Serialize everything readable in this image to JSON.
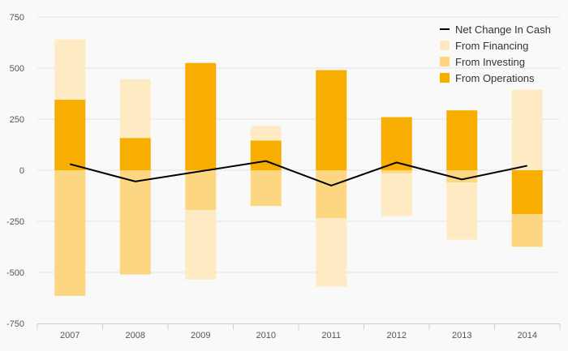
{
  "chart_data": {
    "type": "bar",
    "title": "",
    "xlabel": "",
    "ylabel": "",
    "stacked": true,
    "categories": [
      "2007",
      "2008",
      "2009",
      "2010",
      "2011",
      "2012",
      "2013",
      "2014"
    ],
    "ylim": [
      -750,
      750
    ],
    "yticks": [
      750,
      500,
      250,
      0,
      -250,
      -500,
      -750
    ],
    "grid": true,
    "legend_position": "top-right",
    "series": [
      {
        "name": "From Operations",
        "type": "bar",
        "color": "#f8ae00",
        "values": [
          345,
          158,
          525,
          145,
          490,
          260,
          293,
          -215
        ]
      },
      {
        "name": "From Investing",
        "type": "bar",
        "color": "#fcd680",
        "values": [
          -615,
          -510,
          -195,
          -175,
          -235,
          -15,
          -60,
          -160
        ]
      },
      {
        "name": "From Financing",
        "type": "bar",
        "color": "#feebc4",
        "values": [
          295,
          287,
          -340,
          72,
          -335,
          -210,
          -280,
          395
        ]
      },
      {
        "name": "Net Change In Cash",
        "type": "line",
        "color": "#000000",
        "values": [
          30,
          -55,
          -5,
          45,
          -75,
          38,
          -45,
          22
        ]
      }
    ],
    "legend": [
      {
        "label": "Net Change In Cash",
        "kind": "line",
        "color": "#000000"
      },
      {
        "label": "From Financing",
        "kind": "box",
        "color": "#feebc4"
      },
      {
        "label": "From Investing",
        "kind": "box",
        "color": "#fcd680"
      },
      {
        "label": "From Operations",
        "kind": "box",
        "color": "#f8ae00"
      }
    ]
  }
}
